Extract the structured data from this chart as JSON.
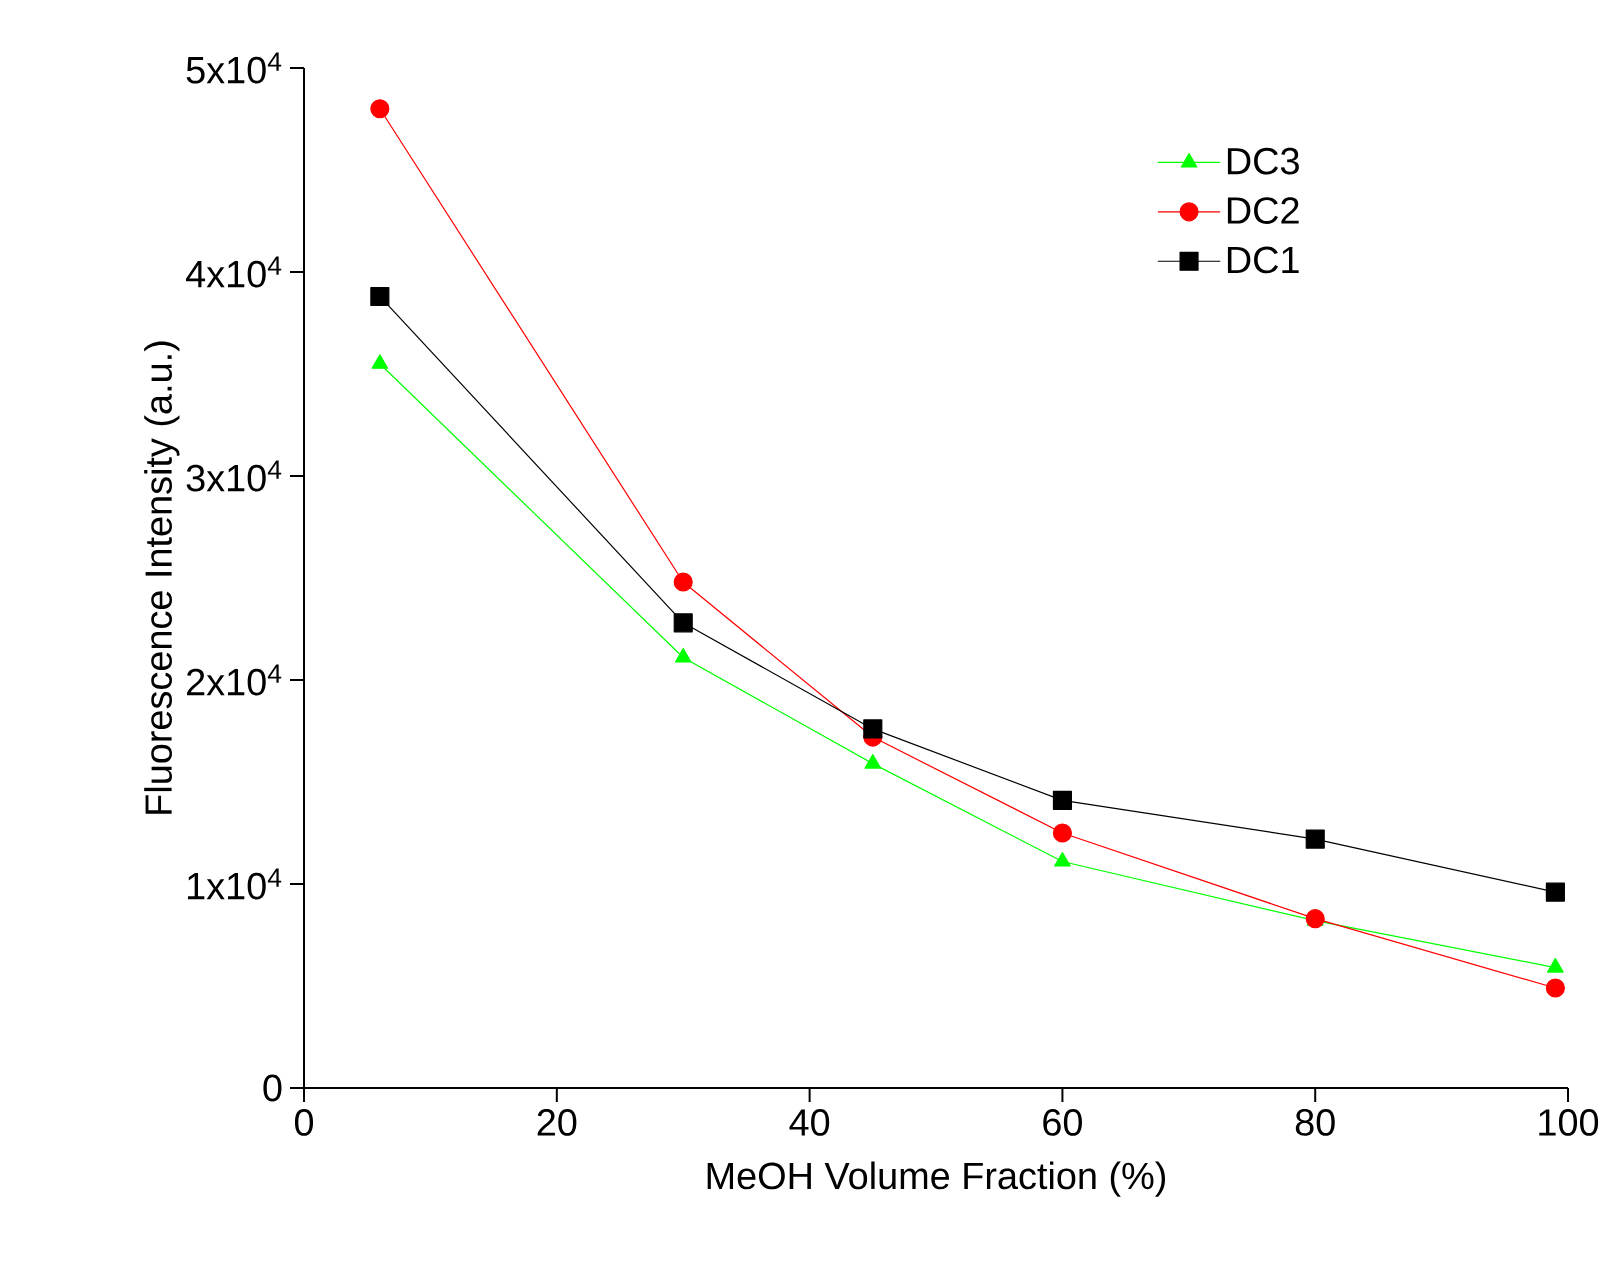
{
  "chart_data": {
    "type": "line",
    "xlabel": "MeOH Volume Fraction (%)",
    "ylabel": "Fluorescence Intensity (a.u.)",
    "x": [
      6,
      30,
      45,
      60,
      80,
      99
    ],
    "series": [
      {
        "name": "DC3",
        "color": "#00ff00",
        "marker": "triangle",
        "values": [
          35500,
          21100,
          15900,
          11100,
          8200,
          5900
        ]
      },
      {
        "name": "DC2",
        "color": "#ff0000",
        "marker": "circle",
        "values": [
          48000,
          24800,
          17200,
          12500,
          8300,
          4900
        ]
      },
      {
        "name": "DC1",
        "color": "#000000",
        "marker": "square",
        "values": [
          38800,
          22800,
          17600,
          14100,
          12200,
          9600
        ]
      }
    ],
    "xlim": [
      0,
      100
    ],
    "xticks": [
      0,
      20,
      40,
      60,
      80,
      100
    ],
    "ylim": [
      0,
      50000
    ],
    "yticks": [
      {
        "value": 0,
        "label": "0"
      },
      {
        "value": 10000,
        "label": "1x10$^{4}$"
      },
      {
        "value": 20000,
        "label": "2x10$^{4}$"
      },
      {
        "value": 30000,
        "label": "3x10$^{4}$"
      },
      {
        "value": 40000,
        "label": "4x10$^{4}$"
      },
      {
        "value": 50000,
        "label": "5x10$^{4}$"
      }
    ],
    "legend": "top right"
  }
}
